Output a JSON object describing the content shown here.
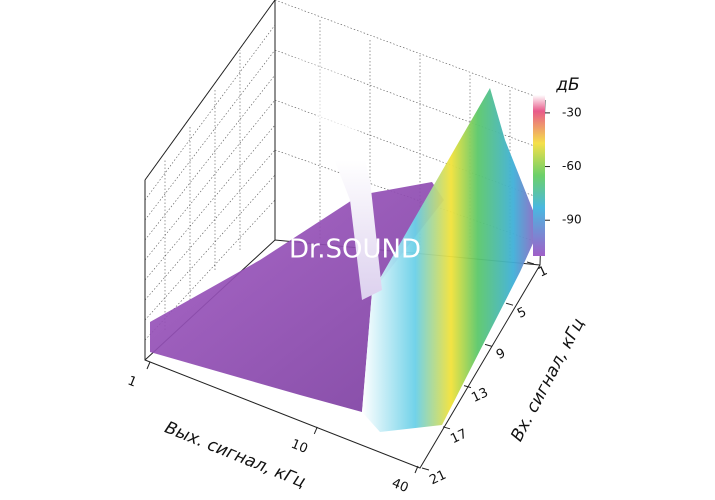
{
  "chart_data": {
    "type": "surface",
    "xlabel": "Вых. сигнал, кГц",
    "ylabel": "Вх. сигнал, кГц",
    "zlabel": "дБ",
    "annotation": "Dr.SOUND",
    "xscale": "log",
    "xlim": [
      1,
      40
    ],
    "xticks": [
      1,
      10,
      40
    ],
    "ylim": [
      1,
      21
    ],
    "yticks": [
      1,
      5,
      9,
      13,
      17,
      21
    ],
    "clim": [
      -20,
      -110
    ],
    "cticks": [
      -30,
      -60,
      -90
    ]
  }
}
